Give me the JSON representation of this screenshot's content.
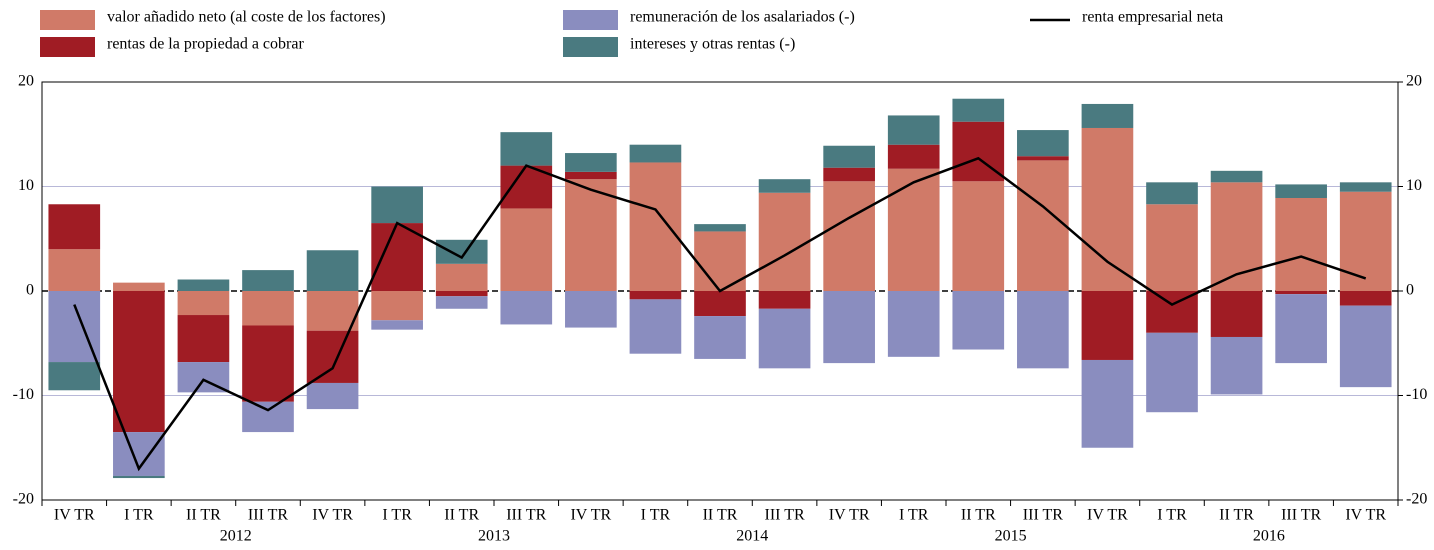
{
  "chart_data": {
    "type": "bar",
    "stacked": true,
    "categories": [
      "IV TR",
      "I TR",
      "II TR",
      "III TR",
      "IV TR",
      "I TR",
      "II TR",
      "III TR",
      "IV TR",
      "I TR",
      "II TR",
      "III TR",
      "IV TR",
      "I TR",
      "II TR",
      "III TR",
      "IV TR",
      "I TR",
      "II TR",
      "III TR",
      "IV TR"
    ],
    "years": [
      null,
      "2012",
      "2012",
      "2012",
      "2012",
      "2013",
      "2013",
      "2013",
      "2013",
      "2014",
      "2014",
      "2014",
      "2014",
      "2015",
      "2015",
      "2015",
      "2015",
      "2016",
      "2016",
      "2016",
      "2016"
    ],
    "series": [
      {
        "name": "valor añadido neto (al coste de los factores)",
        "color": "#d07a68",
        "values": [
          4.0,
          0.8,
          -2.3,
          -3.3,
          -3.8,
          -2.8,
          2.6,
          7.9,
          10.7,
          12.3,
          5.7,
          9.4,
          10.5,
          11.7,
          10.5,
          12.5,
          15.6,
          8.3,
          10.4,
          8.9,
          9.5
        ]
      },
      {
        "name": "rentas de la propiedad a cobrar",
        "color": "#a01c24",
        "values": [
          4.3,
          -13.5,
          -4.5,
          -7.3,
          -5.0,
          6.5,
          -0.5,
          4.1,
          0.7,
          -0.8,
          -2.4,
          -1.7,
          1.3,
          2.3,
          5.7,
          0.4,
          -6.6,
          -4.0,
          -4.4,
          -0.3,
          -1.4
        ]
      },
      {
        "name": "remuneración de los asalariados (-)",
        "color": "#8a8dbf",
        "values": [
          -6.8,
          -4.2,
          -2.9,
          -2.9,
          -2.5,
          -0.9,
          -1.2,
          -3.2,
          -3.5,
          -5.2,
          -4.1,
          -5.7,
          -6.9,
          -6.3,
          -5.6,
          -7.4,
          -8.4,
          -7.6,
          -5.5,
          -6.6,
          -7.8
        ]
      },
      {
        "name": "intereses y otras rentas (-)",
        "color": "#4a7a80",
        "values": [
          -2.7,
          -0.2,
          1.1,
          2.0,
          3.9,
          3.5,
          2.3,
          3.2,
          1.8,
          1.7,
          0.7,
          1.3,
          2.1,
          2.8,
          2.2,
          2.5,
          2.3,
          2.1,
          1.1,
          1.3,
          0.9
        ]
      },
      {
        "name": "renta empresarial neta",
        "type": "line",
        "color": "#000000",
        "values": [
          -1.3,
          -17.0,
          -8.5,
          -11.4,
          -7.4,
          6.5,
          3.2,
          12.0,
          9.7,
          7.8,
          0.0,
          3.4,
          7.0,
          10.4,
          12.7,
          8.1,
          2.8,
          -1.3,
          1.6,
          3.3,
          1.2
        ]
      }
    ],
    "ylim": [
      -20,
      20
    ],
    "yticks": [
      -20,
      -10,
      0,
      10,
      20
    ],
    "y2lim": [
      -20,
      20
    ],
    "y2ticks": [
      -20,
      -10,
      0,
      10,
      20
    ],
    "grid": true
  }
}
